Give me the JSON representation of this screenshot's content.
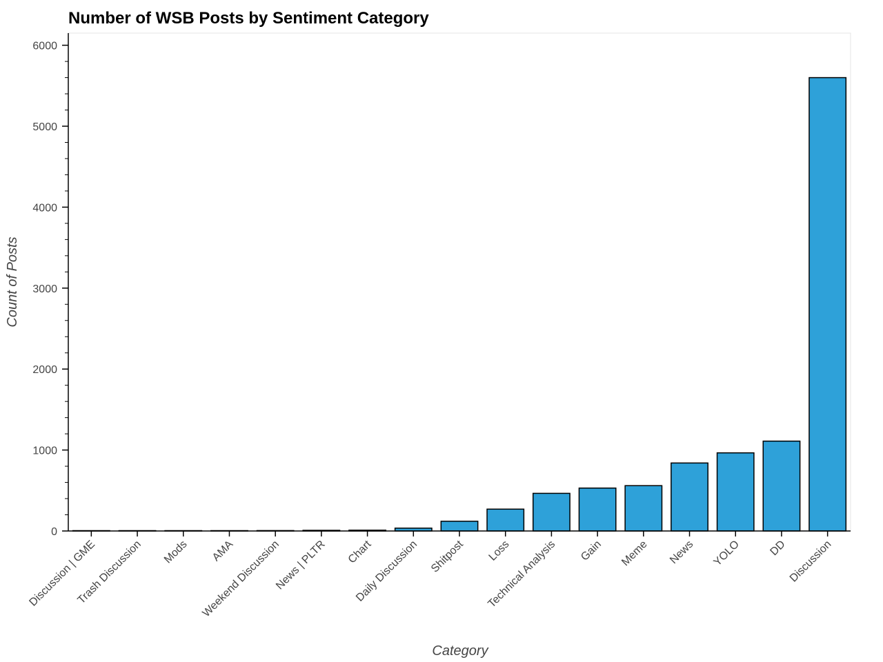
{
  "chart_data": {
    "type": "bar",
    "title": "Number of WSB Posts by Sentiment Category",
    "xlabel": "Category",
    "ylabel": "Count of Posts",
    "categories": [
      "Discussion | GME",
      "Trash Discussion",
      "Mods",
      "AMA",
      "Weekend Discussion",
      "News | PLTR",
      "Chart",
      "Daily Discussion",
      "Shitpost",
      "Loss",
      "Technical Analysis",
      "Gain",
      "Meme",
      "News",
      "YOLO",
      "DD",
      "Discussion"
    ],
    "values": [
      1,
      1,
      2,
      3,
      5,
      8,
      10,
      35,
      120,
      270,
      465,
      530,
      560,
      840,
      965,
      1110,
      5600
    ],
    "ylim": [
      0,
      6150
    ],
    "yticks": [
      0,
      1000,
      2000,
      3000,
      4000,
      5000,
      6000
    ],
    "grid": false,
    "legend": "none",
    "colors": {
      "bar_fill": "#2ea1d9",
      "bar_stroke": "#000000",
      "axis": "#000000",
      "frame": "#e5e5e5",
      "text": "#444444"
    }
  }
}
